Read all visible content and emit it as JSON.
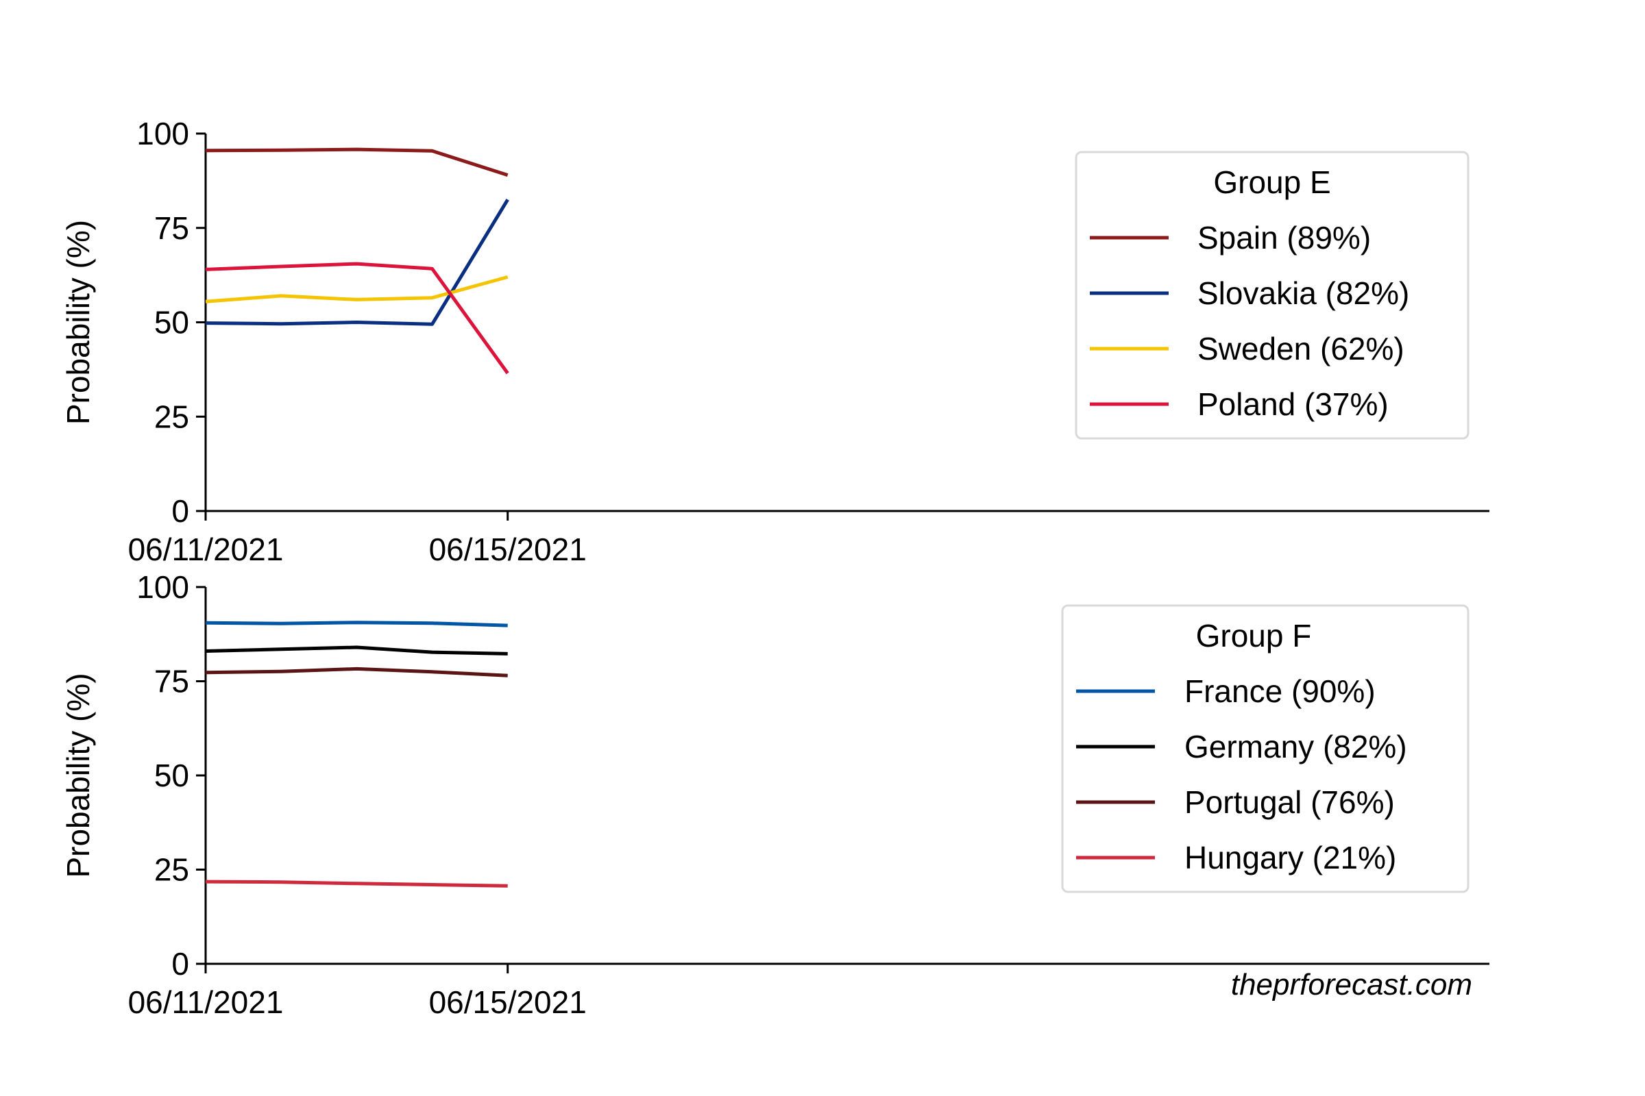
{
  "chart_data": [
    {
      "type": "line",
      "legend_title": "Group E",
      "ylabel": "Probability (%)",
      "ylim": [
        0,
        100
      ],
      "yticks": [
        0,
        25,
        50,
        75,
        100
      ],
      "x": [
        "06/11/2021",
        "06/12/2021",
        "06/13/2021",
        "06/14/2021",
        "06/15/2021"
      ],
      "xlim": [
        "06/11/2021",
        "06/28/2021"
      ],
      "xtick_labels": [
        "06/11/2021",
        "06/15/2021"
      ],
      "legend_position": "upper-right",
      "series": [
        {
          "name": "Spain (89%)",
          "color": "#8b1a1a",
          "values": [
            95.5,
            95.6,
            95.8,
            95.4,
            89.0
          ]
        },
        {
          "name": "Slovakia (82%)",
          "color": "#0b2f80",
          "values": [
            49.8,
            49.6,
            50.0,
            49.5,
            82.5
          ]
        },
        {
          "name": "Sweden (62%)",
          "color": "#f5c400",
          "values": [
            55.5,
            57.0,
            56.0,
            56.5,
            62.0
          ]
        },
        {
          "name": "Poland (37%)",
          "color": "#dc143c",
          "values": [
            64.0,
            64.8,
            65.5,
            64.2,
            36.5
          ]
        }
      ]
    },
    {
      "type": "line",
      "legend_title": "Group F",
      "ylabel": "Probability (%)",
      "ylim": [
        0,
        100
      ],
      "yticks": [
        0,
        25,
        50,
        75,
        100
      ],
      "x": [
        "06/11/2021",
        "06/12/2021",
        "06/13/2021",
        "06/14/2021",
        "06/15/2021"
      ],
      "xlim": [
        "06/11/2021",
        "06/28/2021"
      ],
      "xtick_labels": [
        "06/11/2021",
        "06/15/2021"
      ],
      "legend_position": "upper-right",
      "series": [
        {
          "name": "France (90%)",
          "color": "#0055a4",
          "values": [
            90.5,
            90.3,
            90.6,
            90.4,
            89.8
          ]
        },
        {
          "name": "Germany (82%)",
          "color": "#000000",
          "values": [
            83.0,
            83.5,
            84.0,
            82.7,
            82.3
          ]
        },
        {
          "name": "Portugal (76%)",
          "color": "#5a1414",
          "values": [
            77.3,
            77.6,
            78.3,
            77.5,
            76.5
          ]
        },
        {
          "name": "Hungary (21%)",
          "color": "#cd2a3e",
          "values": [
            21.8,
            21.7,
            21.3,
            21.0,
            20.7
          ]
        }
      ]
    }
  ],
  "watermark": "theprforecast.com"
}
